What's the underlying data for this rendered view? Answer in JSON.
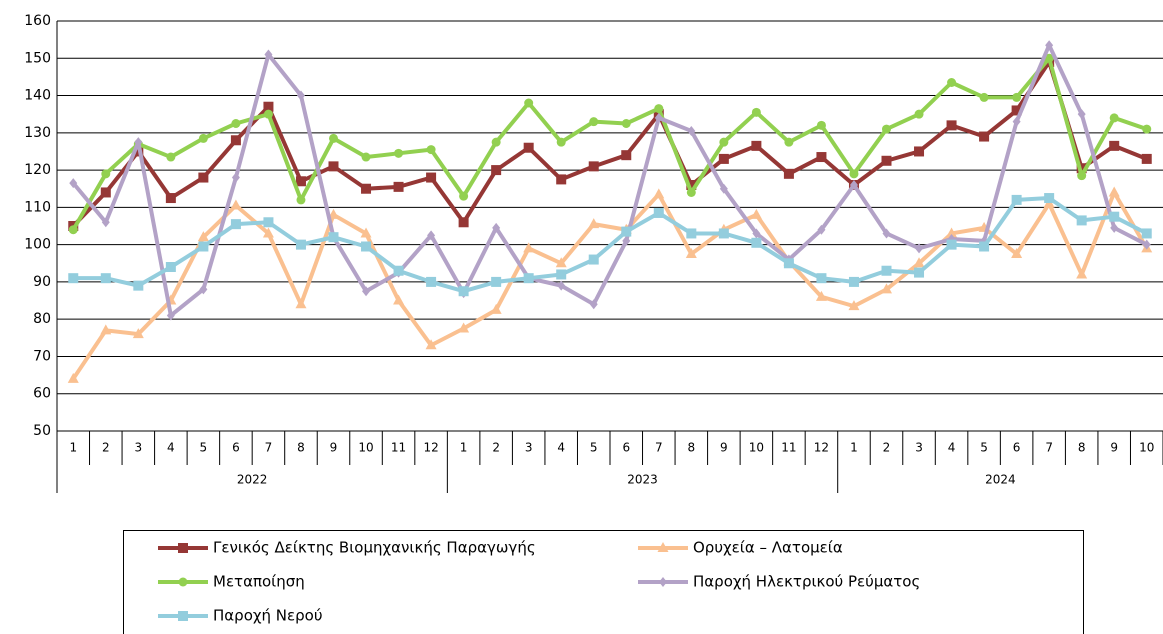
{
  "chart_data": {
    "type": "line",
    "categories": [
      "1",
      "2",
      "3",
      "4",
      "5",
      "6",
      "7",
      "8",
      "9",
      "10",
      "11",
      "12",
      "1",
      "2",
      "3",
      "4",
      "5",
      "6",
      "7",
      "8",
      "9",
      "10",
      "11",
      "12",
      "1",
      "2",
      "3",
      "4",
      "5",
      "6",
      "7",
      "8",
      "9",
      "10"
    ],
    "category_groups": [
      "2022",
      "2023",
      "2024"
    ],
    "ylim": [
      50,
      160
    ],
    "yticks": [
      50,
      60,
      70,
      80,
      90,
      100,
      110,
      120,
      130,
      140,
      150,
      160
    ],
    "grid": true,
    "series": [
      {
        "name": "Γενικός Δείκτης Βιομηχανικής Παραγωγής",
        "color": "#953735",
        "marker": "square",
        "values": [
          105,
          114,
          125,
          112.5,
          118,
          128,
          137,
          117,
          121,
          115,
          115.5,
          118,
          106,
          120,
          126,
          117.5,
          121,
          124,
          135,
          116,
          123,
          126.5,
          119,
          123.5,
          116,
          122.5,
          125,
          132,
          129,
          136,
          149,
          120.5,
          126.5,
          123
        ]
      },
      {
        "name": "Ορυχεία – Λατομεία",
        "color": "#fac090",
        "marker": "triangle",
        "values": [
          64,
          77,
          76,
          85,
          102,
          110.5,
          103,
          84,
          108,
          103,
          85,
          73,
          77.5,
          82.5,
          99,
          95,
          105.5,
          104,
          113.5,
          97.5,
          104,
          108,
          95.5,
          86,
          83.5,
          88,
          95,
          103,
          104.5,
          97.5,
          111,
          92,
          114,
          99
        ]
      },
      {
        "name": "Μεταποίηση",
        "color": "#92d050",
        "marker": "circle",
        "values": [
          104,
          119,
          127,
          123.5,
          128.5,
          132.5,
          135,
          112,
          128.5,
          123.5,
          124.5,
          125.5,
          113,
          127.5,
          138,
          127.5,
          133,
          132.5,
          136.5,
          114,
          127.5,
          135.5,
          127.5,
          132,
          119,
          131,
          135,
          143.5,
          139.5,
          139.5,
          150,
          118.5,
          134,
          131
        ]
      },
      {
        "name": "Παροχή Ηλεκτρικού Ρεύματος",
        "color": "#b3a2c7",
        "marker": "diamond",
        "values": [
          116.5,
          106,
          127.5,
          81,
          88,
          118,
          151,
          140,
          102,
          87.5,
          92.5,
          102.5,
          87,
          104.5,
          91,
          89,
          84,
          101,
          134,
          130.5,
          115,
          103,
          96,
          104,
          116,
          103,
          99,
          101.5,
          101,
          133,
          153.5,
          135,
          104.5,
          100
        ]
      },
      {
        "name": "Παροχή Νερού",
        "color": "#93cddd",
        "marker": "square",
        "values": [
          91,
          91,
          89,
          94,
          99.5,
          105.5,
          106,
          100,
          102,
          99.5,
          93,
          90,
          87.5,
          90,
          91,
          92,
          96,
          103.5,
          108.5,
          103,
          103,
          100.5,
          95,
          91,
          90,
          93,
          92.5,
          100,
          99.5,
          112,
          112.5,
          106.5,
          107.5,
          103
        ]
      }
    ]
  }
}
